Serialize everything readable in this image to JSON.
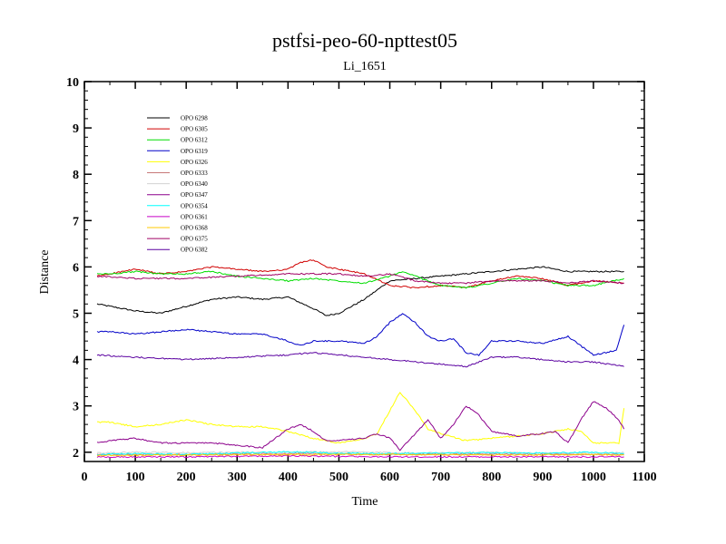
{
  "chart_data": {
    "type": "line",
    "title": "pstfsi-peo-60-npttest05",
    "subtitle": "Li_1651",
    "xlabel": "Time",
    "ylabel": "Distance",
    "xlim": [
      0,
      1100
    ],
    "ylim": [
      1.8,
      10
    ],
    "x_ticks": [
      0,
      100,
      200,
      300,
      400,
      500,
      600,
      700,
      800,
      900,
      1000,
      1100
    ],
    "y_ticks": [
      2,
      3,
      4,
      5,
      6,
      7,
      8,
      9,
      10
    ],
    "x_tick_labels": [
      "0",
      "100",
      "200",
      "300",
      "400",
      "500",
      "600",
      "700",
      "800",
      "900",
      "1000",
      "1100"
    ],
    "y_tick_labels": [
      "2",
      "3",
      "4",
      "5",
      "6",
      "7",
      "8",
      "9",
      "10"
    ],
    "grid": false,
    "legend_position": "top-left",
    "series": [
      {
        "name": "OPO 6298",
        "color": "#000000",
        "x": [
          25,
          50,
          100,
          150,
          200,
          250,
          300,
          350,
          400,
          450,
          475,
          500,
          550,
          600,
          650,
          700,
          750,
          800,
          850,
          900,
          950,
          1000,
          1060
        ],
        "y": [
          5.2,
          5.15,
          5.05,
          5.0,
          5.15,
          5.3,
          5.35,
          5.3,
          5.35,
          5.1,
          4.95,
          5.0,
          5.3,
          5.7,
          5.75,
          5.8,
          5.85,
          5.9,
          5.95,
          6.0,
          5.9,
          5.9,
          5.9
        ]
      },
      {
        "name": "OPO 6305",
        "color": "#d00000",
        "x": [
          25,
          50,
          100,
          150,
          200,
          250,
          300,
          350,
          400,
          425,
          450,
          475,
          500,
          550,
          600,
          650,
          700,
          750,
          800,
          850,
          900,
          950,
          1000,
          1060
        ],
        "y": [
          5.8,
          5.85,
          5.95,
          5.85,
          5.9,
          6.0,
          5.95,
          5.9,
          5.95,
          6.1,
          6.15,
          6.0,
          5.95,
          5.85,
          5.6,
          5.55,
          5.6,
          5.55,
          5.7,
          5.8,
          5.75,
          5.6,
          5.7,
          5.65
        ]
      },
      {
        "name": "OPO 6312",
        "color": "#00dd00",
        "x": [
          25,
          50,
          100,
          150,
          200,
          250,
          300,
          350,
          400,
          450,
          500,
          550,
          600,
          625,
          650,
          700,
          750,
          800,
          850,
          900,
          950,
          1000,
          1060
        ],
        "y": [
          5.85,
          5.85,
          5.9,
          5.85,
          5.85,
          5.9,
          5.8,
          5.75,
          5.7,
          5.75,
          5.7,
          5.65,
          5.8,
          5.9,
          5.8,
          5.6,
          5.55,
          5.65,
          5.75,
          5.7,
          5.6,
          5.6,
          5.75
        ]
      },
      {
        "name": "OPO 6319",
        "color": "#0000c8",
        "x": [
          25,
          50,
          100,
          150,
          200,
          250,
          300,
          350,
          400,
          425,
          450,
          500,
          550,
          575,
          600,
          625,
          650,
          675,
          700,
          725,
          750,
          775,
          800,
          850,
          900,
          950,
          975,
          1000,
          1025,
          1045,
          1060
        ],
        "y": [
          4.6,
          4.6,
          4.55,
          4.6,
          4.65,
          4.6,
          4.55,
          4.55,
          4.4,
          4.3,
          4.4,
          4.4,
          4.35,
          4.5,
          4.8,
          5.0,
          4.8,
          4.5,
          4.4,
          4.45,
          4.15,
          4.1,
          4.4,
          4.4,
          4.35,
          4.5,
          4.3,
          4.1,
          4.15,
          4.2,
          4.75
        ]
      },
      {
        "name": "OPO 6326",
        "color": "#ffff00",
        "x": [
          25,
          50,
          100,
          150,
          200,
          250,
          300,
          350,
          400,
          450,
          500,
          550,
          575,
          600,
          620,
          650,
          675,
          700,
          750,
          800,
          850,
          900,
          950,
          975,
          1000,
          1050,
          1060
        ],
        "y": [
          2.65,
          2.65,
          2.55,
          2.6,
          2.7,
          2.6,
          2.55,
          2.55,
          2.45,
          2.3,
          2.2,
          2.3,
          2.4,
          2.9,
          3.3,
          2.9,
          2.5,
          2.4,
          2.25,
          2.3,
          2.35,
          2.4,
          2.5,
          2.45,
          2.2,
          2.2,
          2.95
        ]
      },
      {
        "name": "OPO 6333",
        "color": "#c87878",
        "x": [
          25,
          200,
          400,
          600,
          800,
          1000,
          1060
        ],
        "y": [
          1.95,
          1.95,
          1.97,
          1.95,
          1.96,
          1.95,
          1.95
        ]
      },
      {
        "name": "OPO 6340",
        "color": "#d2d2d2",
        "x": [
          25,
          100,
          200,
          300,
          400,
          500,
          600,
          700,
          800,
          900,
          1000,
          1060
        ],
        "y": [
          1.98,
          2.0,
          1.99,
          2.0,
          2.0,
          2.01,
          1.99,
          1.99,
          2.0,
          1.98,
          1.98,
          1.99
        ]
      },
      {
        "name": "OPO 6347",
        "color": "#8c008c",
        "x": [
          25,
          50,
          100,
          150,
          200,
          250,
          300,
          350,
          400,
          425,
          450,
          475,
          500,
          550,
          575,
          600,
          620,
          650,
          675,
          700,
          725,
          750,
          775,
          800,
          850,
          900,
          925,
          950,
          975,
          1000,
          1025,
          1050,
          1060
        ],
        "y": [
          2.2,
          2.25,
          2.3,
          2.2,
          2.2,
          2.2,
          2.15,
          2.1,
          2.5,
          2.6,
          2.45,
          2.25,
          2.25,
          2.3,
          2.4,
          2.3,
          2.05,
          2.4,
          2.7,
          2.3,
          2.6,
          3.0,
          2.8,
          2.45,
          2.35,
          2.4,
          2.45,
          2.2,
          2.7,
          3.1,
          2.95,
          2.7,
          2.5
        ]
      },
      {
        "name": "OPO 6354",
        "color": "#00ffff",
        "x": [
          25,
          100,
          200,
          300,
          400,
          500,
          600,
          700,
          800,
          900,
          1000,
          1060
        ],
        "y": [
          1.95,
          1.97,
          1.95,
          1.98,
          2.01,
          1.98,
          1.97,
          1.98,
          1.99,
          1.98,
          2.0,
          1.97
        ]
      },
      {
        "name": "OPO 6361",
        "color": "#c800c8",
        "x": [
          25,
          200,
          400,
          600,
          800,
          1000,
          1060
        ],
        "y": [
          1.9,
          1.9,
          1.92,
          1.9,
          1.9,
          1.9,
          1.9
        ]
      },
      {
        "name": "OPO 6368",
        "color": "#ffc800",
        "x": [
          25,
          200,
          400,
          600,
          800,
          1000,
          1060
        ],
        "y": [
          1.93,
          1.94,
          1.95,
          1.95,
          1.94,
          1.95,
          1.94
        ]
      },
      {
        "name": "OPO 6375",
        "color": "#a00064",
        "x": [
          25,
          100,
          200,
          300,
          400,
          450,
          500,
          550,
          600,
          650,
          700,
          750,
          800,
          850,
          900,
          950,
          1000,
          1060
        ],
        "y": [
          5.8,
          5.75,
          5.75,
          5.8,
          5.85,
          5.85,
          5.85,
          5.8,
          5.85,
          5.7,
          5.65,
          5.65,
          5.7,
          5.7,
          5.7,
          5.65,
          5.7,
          5.65
        ]
      },
      {
        "name": "OPO 6382",
        "color": "#5a00a0",
        "x": [
          25,
          100,
          200,
          300,
          400,
          450,
          500,
          550,
          600,
          650,
          700,
          750,
          800,
          850,
          900,
          950,
          1000,
          1060
        ],
        "y": [
          4.1,
          4.05,
          4.0,
          4.05,
          4.1,
          4.15,
          4.1,
          4.05,
          4.0,
          3.95,
          3.9,
          3.85,
          4.05,
          4.05,
          4.0,
          3.95,
          3.95,
          3.85
        ]
      }
    ]
  }
}
